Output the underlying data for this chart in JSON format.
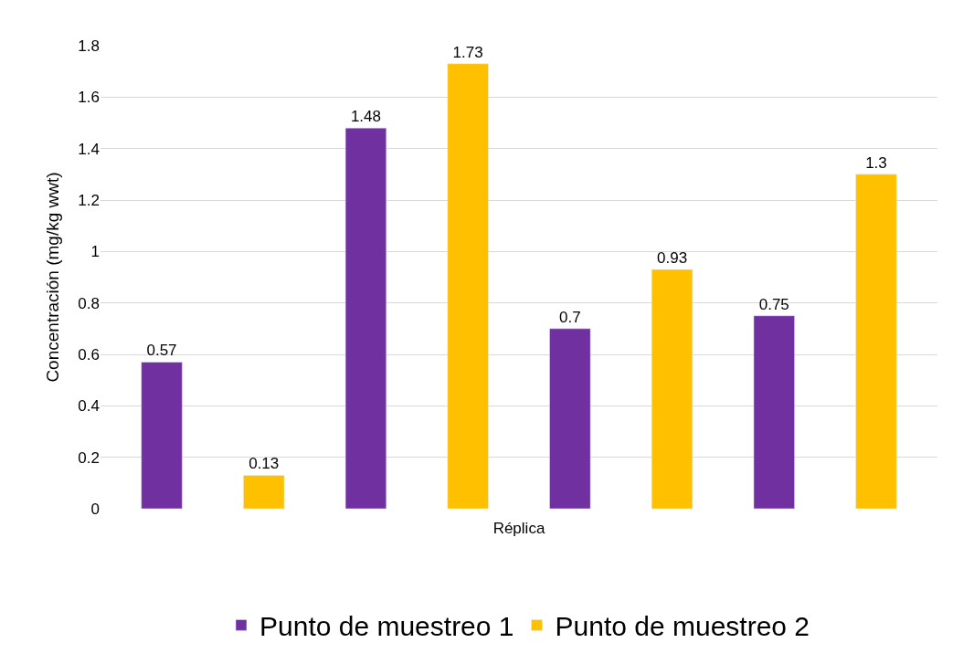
{
  "chart_data": {
    "type": "bar",
    "xlabel": "Réplica",
    "ylabel": "Concentración (mg/kg wwt)",
    "categories": [
      null,
      null,
      null,
      null,
      null,
      null,
      null,
      null
    ],
    "series": [
      {
        "name": "Punto de muestreo 1",
        "color": "#7030a0",
        "values": [
          0.57,
          null,
          1.48,
          null,
          0.7,
          null,
          0.75,
          null
        ]
      },
      {
        "name": "Punto de muestreo 2",
        "color": "#ffc000",
        "values": [
          null,
          0.13,
          null,
          1.73,
          null,
          0.93,
          null,
          1.3
        ]
      }
    ],
    "ylim": [
      0,
      1.8
    ],
    "yticks": [
      0,
      {
        "value": 0.2,
        "label": "0.2"
      },
      {
        "value": 0.4,
        "label": "0.4"
      },
      {
        "value": 0.6,
        "label": "0.6"
      },
      {
        "value": 0.8,
        "label": "0.8"
      },
      1,
      {
        "value": 1.2,
        "label": "1.2"
      },
      {
        "value": 1.4,
        "label": "1.4"
      },
      {
        "value": 1.6,
        "label": "1.6"
      },
      {
        "value": 1.8,
        "label": "1.8"
      }
    ],
    "grid": "y",
    "legend": "bottom",
    "data_labels": true
  }
}
